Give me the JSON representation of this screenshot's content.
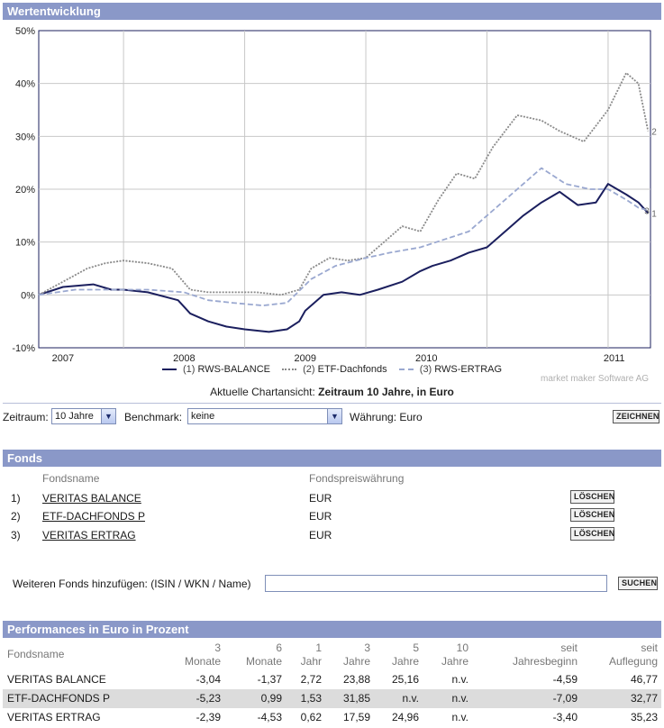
{
  "chart_section": {
    "title": "Wertentwicklung"
  },
  "chart_data": {
    "type": "line",
    "yticks": [
      "50%",
      "40%",
      "30%",
      "20%",
      "10%",
      "0%",
      "-10%"
    ],
    "ylim": [
      -10,
      50
    ],
    "xticks": [
      "2007",
      "2008",
      "2009",
      "2010",
      "2011"
    ],
    "x_range": [
      2006.3,
      2011.35
    ],
    "grid": true,
    "series": [
      {
        "name": "RWS-BALANCE",
        "legend_number": "(1)",
        "end_marker": "1",
        "color": "#1b1f5e",
        "style": "solid",
        "points": [
          [
            2006.3,
            0
          ],
          [
            2006.5,
            1.5
          ],
          [
            2006.75,
            2
          ],
          [
            2006.9,
            1
          ],
          [
            2007.0,
            1
          ],
          [
            2007.2,
            0.5
          ],
          [
            2007.45,
            -1
          ],
          [
            2007.55,
            -3.5
          ],
          [
            2007.7,
            -5
          ],
          [
            2007.85,
            -6
          ],
          [
            2008.0,
            -6.5
          ],
          [
            2008.2,
            -7
          ],
          [
            2008.35,
            -6.5
          ],
          [
            2008.45,
            -5
          ],
          [
            2008.5,
            -3
          ],
          [
            2008.65,
            0
          ],
          [
            2008.8,
            0.5
          ],
          [
            2008.95,
            0
          ],
          [
            2009.1,
            1
          ],
          [
            2009.3,
            2.5
          ],
          [
            2009.45,
            4.5
          ],
          [
            2009.55,
            5.5
          ],
          [
            2009.7,
            6.5
          ],
          [
            2009.85,
            8
          ],
          [
            2010.0,
            9
          ],
          [
            2010.15,
            12
          ],
          [
            2010.3,
            15
          ],
          [
            2010.45,
            17.5
          ],
          [
            2010.6,
            19.5
          ],
          [
            2010.75,
            17
          ],
          [
            2010.9,
            17.5
          ],
          [
            2011.0,
            21
          ],
          [
            2011.15,
            19
          ],
          [
            2011.25,
            17.5
          ],
          [
            2011.33,
            15.5
          ]
        ]
      },
      {
        "name": "ETF-Dachfonds",
        "legend_number": "(2)",
        "end_marker": "2",
        "color": "#8a8a8a",
        "style": "dotted",
        "points": [
          [
            2006.3,
            0
          ],
          [
            2006.5,
            2.5
          ],
          [
            2006.7,
            5
          ],
          [
            2006.85,
            6
          ],
          [
            2007.0,
            6.5
          ],
          [
            2007.2,
            6
          ],
          [
            2007.4,
            5
          ],
          [
            2007.55,
            1
          ],
          [
            2007.7,
            0.5
          ],
          [
            2007.9,
            0.5
          ],
          [
            2008.1,
            0.5
          ],
          [
            2008.3,
            0
          ],
          [
            2008.45,
            1
          ],
          [
            2008.55,
            5
          ],
          [
            2008.7,
            7
          ],
          [
            2008.85,
            6.5
          ],
          [
            2009.0,
            7
          ],
          [
            2009.1,
            9
          ],
          [
            2009.3,
            13
          ],
          [
            2009.45,
            12
          ],
          [
            2009.6,
            18
          ],
          [
            2009.75,
            23
          ],
          [
            2009.9,
            22
          ],
          [
            2010.05,
            28
          ],
          [
            2010.25,
            34
          ],
          [
            2010.45,
            33
          ],
          [
            2010.6,
            31
          ],
          [
            2010.8,
            29
          ],
          [
            2011.0,
            35
          ],
          [
            2011.15,
            42
          ],
          [
            2011.25,
            40
          ],
          [
            2011.33,
            31
          ]
        ]
      },
      {
        "name": "RWS-ERTRAG",
        "legend_number": "(3)",
        "end_marker": "3",
        "color": "#9aa8d0",
        "style": "dashed",
        "points": [
          [
            2006.3,
            0
          ],
          [
            2006.6,
            1
          ],
          [
            2006.9,
            1
          ],
          [
            2007.2,
            1
          ],
          [
            2007.5,
            0.5
          ],
          [
            2007.7,
            -1
          ],
          [
            2007.9,
            -1.5
          ],
          [
            2008.15,
            -2
          ],
          [
            2008.35,
            -1.5
          ],
          [
            2008.55,
            3
          ],
          [
            2008.75,
            5.5
          ],
          [
            2009.0,
            7
          ],
          [
            2009.2,
            8
          ],
          [
            2009.45,
            9
          ],
          [
            2009.65,
            10.5
          ],
          [
            2009.85,
            12
          ],
          [
            2010.05,
            16
          ],
          [
            2010.25,
            20
          ],
          [
            2010.45,
            24
          ],
          [
            2010.65,
            21
          ],
          [
            2010.85,
            20
          ],
          [
            2011.0,
            20
          ],
          [
            2011.15,
            18
          ],
          [
            2011.25,
            16.5
          ],
          [
            2011.33,
            16
          ]
        ]
      }
    ]
  },
  "credit": "market maker Software AG",
  "current_view": {
    "prefix": "Aktuelle Chartansicht:",
    "value": "Zeitraum 10 Jahre, in Euro"
  },
  "controls": {
    "zeitraum_label": "Zeitraum:",
    "zeitraum_value": "10 Jahre",
    "benchmark_label": "Benchmark:",
    "benchmark_value": "keine",
    "waehrung": "Währung: Euro",
    "draw_button": "ZEICHNEN"
  },
  "fonds_section": {
    "title": "Fonds",
    "col_name": "Fondsname",
    "col_currency": "Fondspreiswährung",
    "rows": [
      {
        "num": "1)",
        "name": "VERITAS BALANCE",
        "currency": "EUR",
        "action": "LÖSCHEN"
      },
      {
        "num": "2)",
        "name": "ETF-DACHFONDS P",
        "currency": "EUR",
        "action": "LÖSCHEN"
      },
      {
        "num": "3)",
        "name": "VERITAS ERTRAG",
        "currency": "EUR",
        "action": "LÖSCHEN"
      }
    ],
    "add_label": "Weiteren Fonds hinzufügen: (ISIN / WKN / Name)",
    "add_value": "",
    "search_button": "SUCHEN"
  },
  "perf_section": {
    "title": "Performances in Euro in Prozent",
    "headers": {
      "name": "Fondsname",
      "m3_a": "3",
      "m3_b": "Monate",
      "m6_a": "6",
      "m6_b": "Monate",
      "y1_a": "1",
      "y1_b": "Jahr",
      "y3_a": "3",
      "y3_b": "Jahre",
      "y5_a": "5",
      "y5_b": "Jahre",
      "y10_a": "10",
      "y10_b": "Jahre",
      "ytd_a": "seit",
      "ytd_b": "Jahresbeginn",
      "inc_a": "seit",
      "inc_b": "Auflegung"
    },
    "rows": [
      {
        "name": "VERITAS BALANCE",
        "m3": "-3,04",
        "m6": "-1,37",
        "y1": "2,72",
        "y3": "23,88",
        "y5": "25,16",
        "y10": "n.v.",
        "ytd": "-4,59",
        "inc": "46,77"
      },
      {
        "name": "ETF-DACHFONDS P",
        "m3": "-5,23",
        "m6": "0,99",
        "y1": "1,53",
        "y3": "31,85",
        "y5": "n.v.",
        "y10": "n.v.",
        "ytd": "-7,09",
        "inc": "32,77"
      },
      {
        "name": "VERITAS ERTRAG",
        "m3": "-2,39",
        "m6": "-4,53",
        "y1": "0,62",
        "y3": "17,59",
        "y5": "24,96",
        "y10": "n.v.",
        "ytd": "-3,40",
        "inc": "35,23"
      }
    ]
  }
}
